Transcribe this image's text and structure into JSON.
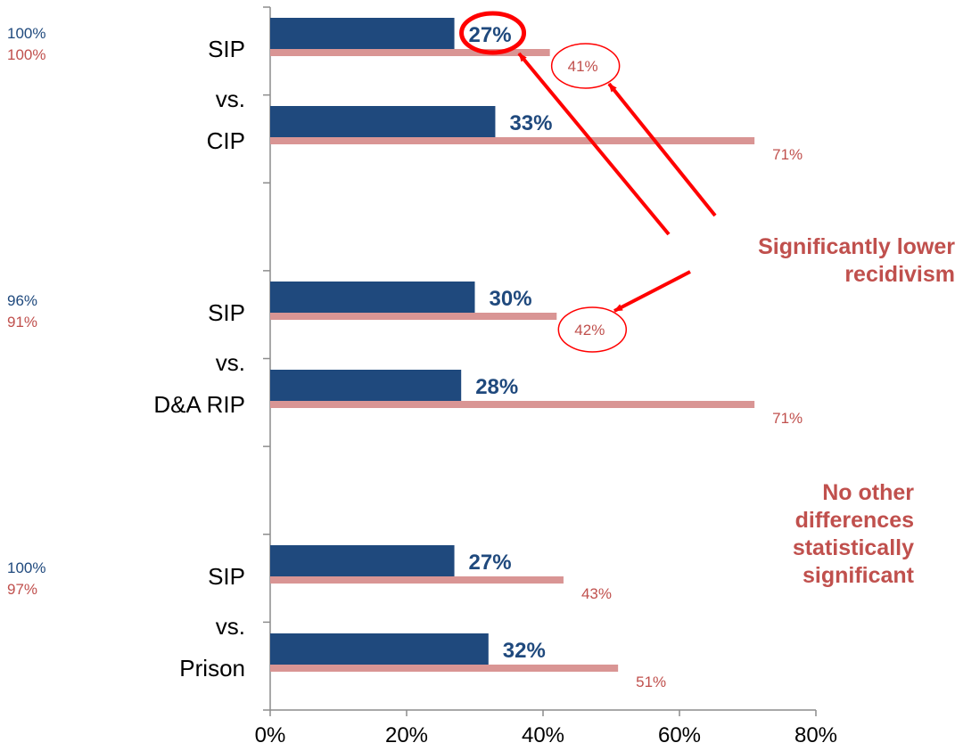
{
  "chart_data": {
    "type": "bar",
    "orientation": "horizontal",
    "xlim": [
      0,
      80
    ],
    "x_ticks": [
      "0%",
      "20%",
      "40%",
      "60%",
      "80%"
    ],
    "colors": {
      "dark_series": "#1f497d",
      "light_series": "#d99594",
      "annotation": "#c0504d",
      "arrow": "#ff0000"
    },
    "groups": [
      {
        "labels": [
          "SIP",
          "vs.",
          "CIP"
        ],
        "side_values": [
          "100%",
          "100%"
        ],
        "bars": [
          {
            "category": "SIP",
            "dark": 27,
            "dark_label": "27%",
            "light": 41,
            "light_label": "41%",
            "circled": true,
            "highlight": true
          },
          {
            "category": "CIP",
            "dark": 33,
            "dark_label": "33%",
            "light": 71,
            "light_label": "71%",
            "circled": false,
            "highlight": false
          }
        ]
      },
      {
        "labels": [
          "SIP",
          "vs.",
          "D&A RIP"
        ],
        "side_values": [
          "96%",
          "91%"
        ],
        "bars": [
          {
            "category": "SIP",
            "dark": 30,
            "dark_label": "30%",
            "light": 42,
            "light_label": "42%",
            "circled": true,
            "highlight": false
          },
          {
            "category": "D&A RIP",
            "dark": 28,
            "dark_label": "28%",
            "light": 71,
            "light_label": "71%",
            "circled": false,
            "highlight": false
          }
        ]
      },
      {
        "labels": [
          "SIP",
          "vs.",
          "Prison"
        ],
        "side_values": [
          "100%",
          "97%"
        ],
        "bars": [
          {
            "category": "SIP",
            "dark": 27,
            "dark_label": "27%",
            "light": 43,
            "light_label": "43%",
            "circled": false,
            "highlight": false
          },
          {
            "category": "Prison",
            "dark": 32,
            "dark_label": "32%",
            "light": 51,
            "light_label": "51%",
            "circled": false,
            "highlight": false
          }
        ]
      }
    ],
    "annotations": [
      {
        "lines": [
          "Significantly lower",
          "recidivism"
        ]
      },
      {
        "lines": [
          "No other",
          "differences",
          "statistically",
          "significant"
        ]
      }
    ]
  }
}
